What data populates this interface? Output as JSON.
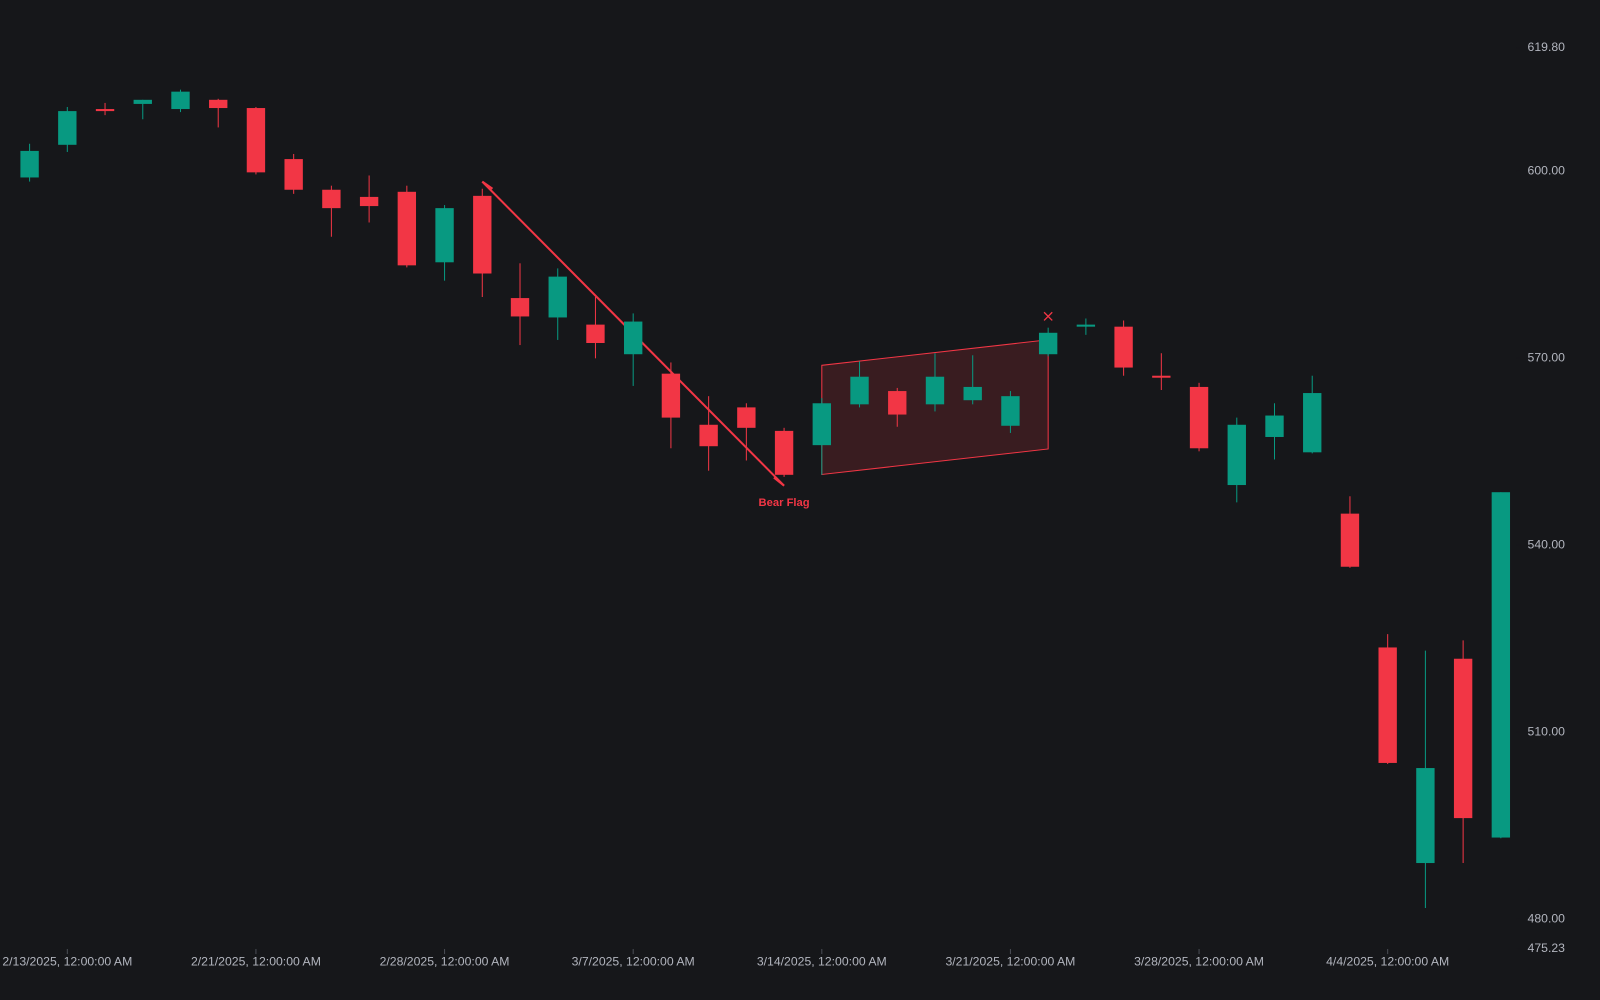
{
  "chart_data": {
    "type": "candlestick",
    "categories": [
      null,
      "2/13/2025, 12:00:00 AM",
      null,
      null,
      null,
      null,
      "2/21/2025, 12:00:00 AM",
      null,
      null,
      null,
      null,
      "2/28/2025, 12:00:00 AM",
      null,
      null,
      null,
      null,
      "3/7/2025, 12:00:00 AM",
      null,
      null,
      null,
      null,
      "3/14/2025, 12:00:00 AM",
      null,
      null,
      null,
      null,
      "3/21/2025, 12:00:00 AM",
      null,
      null,
      null,
      null,
      "3/28/2025, 12:00:00 AM",
      null,
      null,
      null,
      null,
      "4/4/2025, 12:00:00 AM",
      null,
      null,
      null
    ],
    "open": [
      599.02,
      604.26,
      610.0,
      610.82,
      610.0,
      611.48,
      610.16,
      601.97,
      597.05,
      595.9,
      596.72,
      585.41,
      596.07,
      579.67,
      576.56,
      575.41,
      570.66,
      567.54,
      559.34,
      562.13,
      558.36,
      556.07,
      562.62,
      564.75,
      562.62,
      563.28,
      559.18,
      570.66,
      575.08,
      575.08,
      567.21,
      565.41,
      549.67,
      557.38,
      554.92,
      545.08,
      523.61,
      489.02,
      521.8,
      493.11
    ],
    "high": [
      604.43,
      610.33,
      610.98,
      611.48,
      613.11,
      611.64,
      610.33,
      602.79,
      597.7,
      599.34,
      597.7,
      594.59,
      597.21,
      585.25,
      584.43,
      579.84,
      577.21,
      569.34,
      563.93,
      562.79,
      558.85,
      563.61,
      569.51,
      565.25,
      570.82,
      570.49,
      564.75,
      574.92,
      576.39,
      576.07,
      570.82,
      566.07,
      560.49,
      562.79,
      567.21,
      547.87,
      525.74,
      523.11,
      524.75,
      548.52
    ],
    "low": [
      598.36,
      603.11,
      609.02,
      608.36,
      609.51,
      607.05,
      599.51,
      596.39,
      589.51,
      591.8,
      584.59,
      582.46,
      579.84,
      572.13,
      572.95,
      570.0,
      565.57,
      555.57,
      551.97,
      553.61,
      550.98,
      551.31,
      562.13,
      559.02,
      561.48,
      562.62,
      558.03,
      570.33,
      573.77,
      567.21,
      564.92,
      555.08,
      546.89,
      553.77,
      554.75,
      536.39,
      504.92,
      481.8,
      489.02,
      493.0
    ],
    "close": [
      603.28,
      609.67,
      609.67,
      611.48,
      612.79,
      610.16,
      599.84,
      597.05,
      594.1,
      594.43,
      584.92,
      594.1,
      583.61,
      576.72,
      583.11,
      572.46,
      575.9,
      560.49,
      555.9,
      558.85,
      551.31,
      562.79,
      567.05,
      560.98,
      567.05,
      565.41,
      563.93,
      574.1,
      575.41,
      568.52,
      566.89,
      555.57,
      559.34,
      560.82,
      564.43,
      536.56,
      505.08,
      504.26,
      496.23,
      548.52
    ],
    "up_color": "#089981",
    "down_color": "#f23645",
    "ylim": [
      475.23,
      619.8
    ],
    "yticks": [
      {
        "value": 475.23,
        "label": "475.23"
      },
      {
        "value": 480,
        "label": "480.00"
      },
      {
        "value": 510,
        "label": "510.00"
      },
      {
        "value": 540,
        "label": "540.00"
      },
      {
        "value": 570,
        "label": "570.00"
      },
      {
        "value": 600,
        "label": "600.00"
      },
      {
        "value": 619.8,
        "label": "619.80"
      }
    ],
    "annotation": "Bear Flag",
    "annotation_color": "#f23645"
  }
}
